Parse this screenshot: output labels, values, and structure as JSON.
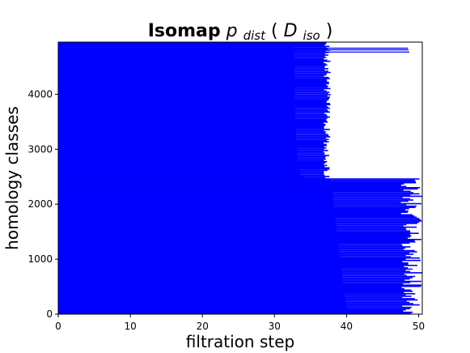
{
  "chart_data": {
    "type": "barcode",
    "title": {
      "bold": "Isomap",
      "math_p": "p",
      "math_p_sub": "dist",
      "math_open": "(",
      "math_D": "D",
      "math_D_sub": "iso",
      "math_close": ")"
    },
    "xlabel": "filtration step",
    "ylabel": "homology classes",
    "xlim": [
      0,
      50.5
    ],
    "ylim": [
      0,
      4950
    ],
    "xticks": [
      0,
      10,
      20,
      30,
      40,
      50
    ],
    "yticks": [
      0,
      1000,
      2000,
      3000,
      4000
    ],
    "bar_color": "#0000ff",
    "groups": [
      {
        "id_range": [
          0,
          2470
        ],
        "births": [
          0,
          0
        ],
        "death_start_curve": [
          [
            0,
            40.3
          ],
          [
            200,
            39.9
          ],
          [
            600,
            39.5
          ],
          [
            1200,
            38.9
          ],
          [
            1800,
            38.4
          ],
          [
            2300,
            38.0
          ],
          [
            2470,
            37.6
          ]
        ],
        "death_end_range": [
          47.5,
          50.5
        ]
      },
      {
        "id_range": [
          2470,
          4950
        ],
        "births": [
          0,
          0
        ],
        "death_start_curve": [
          [
            2470,
            34.5
          ],
          [
            2520,
            33.6
          ],
          [
            2800,
            33.2
          ],
          [
            3500,
            32.9
          ],
          [
            4200,
            32.8
          ],
          [
            4950,
            32.7
          ]
        ],
        "death_end_range": [
          36.8,
          37.8
        ]
      }
    ],
    "outliers": [
      {
        "y": 4770,
        "death": 48.7
      },
      {
        "y": 4810,
        "death": 48.6
      },
      {
        "y": 4840,
        "death": 48.5
      }
    ]
  }
}
